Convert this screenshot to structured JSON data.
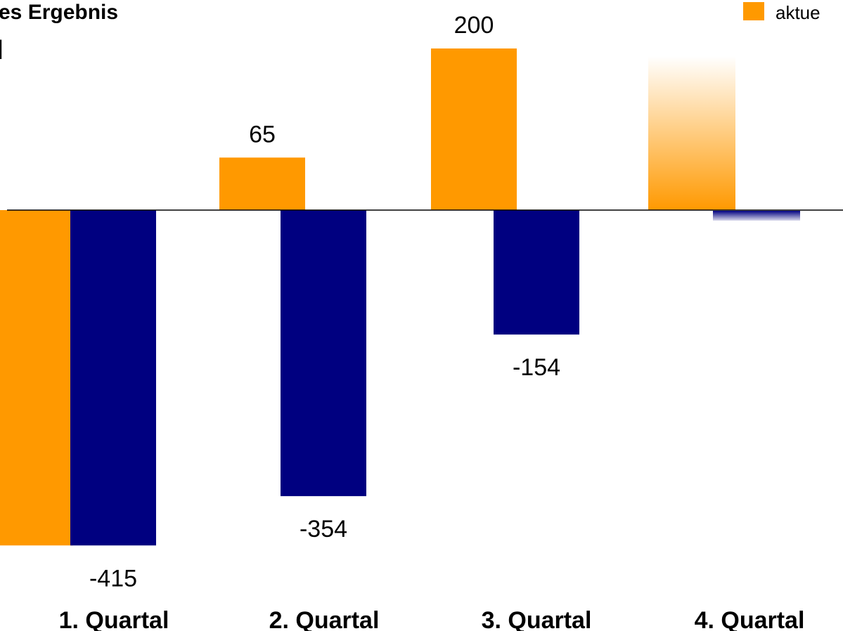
{
  "chart_data": {
    "type": "bar",
    "title": "es Ergebnis",
    "unit_label": "]",
    "categories": [
      "1. Quartal",
      "2. Quartal",
      "3. Quartal",
      "4. Quartal"
    ],
    "series": [
      {
        "name": "aktue",
        "color": "#FF9900",
        "values": [
          -415,
          65,
          200,
          null
        ],
        "labels": [
          "",
          "65",
          "200",
          ""
        ]
      },
      {
        "color": "#000080",
        "values": [
          -415,
          -354,
          -154,
          null
        ],
        "labels": [
          "-415",
          "-354",
          "-154",
          ""
        ]
      }
    ],
    "q4_placeholder_bars": "faded orange and faded navy, no values shown",
    "ylim": [
      -430,
      215
    ],
    "grid": false,
    "legend_position": "top-right",
    "baseline": 0
  }
}
